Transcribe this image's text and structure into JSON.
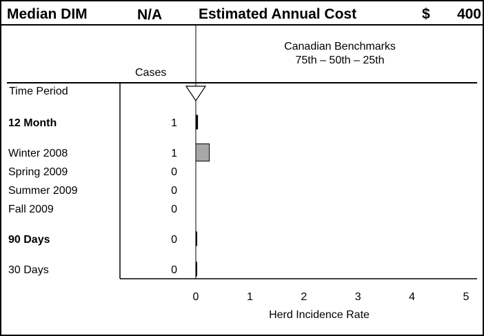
{
  "header": {
    "median_dim_label": "Median DIM",
    "median_dim_value": "N/A",
    "cost_label": "Estimated Annual Cost",
    "currency": "$",
    "cost_value": "400"
  },
  "columns": {
    "time_period": "Time Period",
    "cases": "Cases"
  },
  "benchmark": {
    "title": "Canadian Benchmarks",
    "subtitle": "75th – 50th – 25th"
  },
  "chart_data": {
    "type": "bar",
    "orientation": "horizontal",
    "xlabel": "Herd Incidence Rate",
    "xlim": [
      0,
      5
    ],
    "xticks": [
      "0",
      "1",
      "2",
      "3",
      "4",
      "5"
    ],
    "benchmark_marker_value": 0,
    "rows": [
      {
        "label": "12 Month",
        "bold": true,
        "cases": "1",
        "value": 0.04,
        "style": "black"
      },
      {
        "label": "Winter 2008",
        "bold": false,
        "cases": "1",
        "value": 0.25,
        "style": "gray"
      },
      {
        "label": "Spring 2009",
        "bold": false,
        "cases": "0",
        "value": 0,
        "style": "gray"
      },
      {
        "label": "Summer 2009",
        "bold": false,
        "cases": "0",
        "value": 0,
        "style": "gray"
      },
      {
        "label": "Fall 2009",
        "bold": false,
        "cases": "0",
        "value": 0,
        "style": "gray"
      },
      {
        "label": "90 Days",
        "bold": true,
        "cases": "0",
        "value": 0,
        "style": "black"
      },
      {
        "label": "30 Days",
        "bold": false,
        "cases": "0",
        "value": 0,
        "style": "black"
      }
    ]
  },
  "colors": {
    "gray_bar": "#a8a8a8",
    "black_bar": "#000000"
  }
}
